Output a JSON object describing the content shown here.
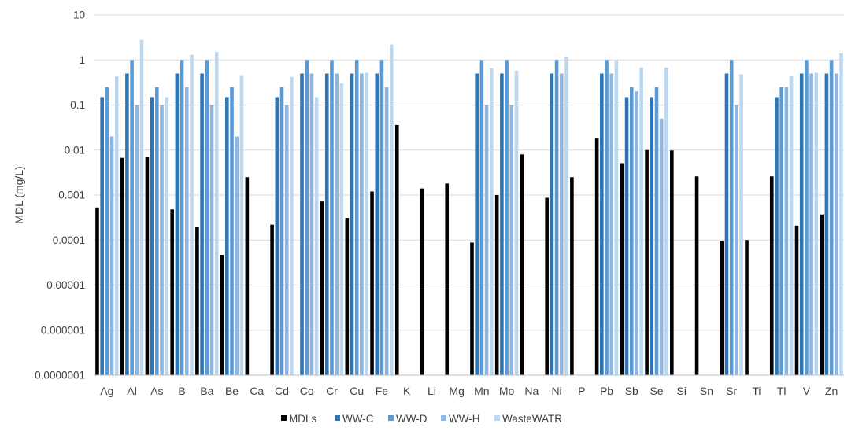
{
  "chart_data": {
    "type": "bar",
    "yscale": "log",
    "ylim": [
      1e-07,
      10
    ],
    "yticks": [
      "10",
      "1",
      "0.1",
      "0.01",
      "0.001",
      "0.0001",
      "0.00001",
      "0.000001",
      "0.0000001"
    ],
    "ylabel": "MDL (mg/L)",
    "xlabel": "",
    "grid": true,
    "legend_position": "bottom",
    "categories": [
      "Ag",
      "Al",
      "As",
      "B",
      "Ba",
      "Be",
      "Ca",
      "Cd",
      "Co",
      "Cr",
      "Cu",
      "Fe",
      "K",
      "Li",
      "Mg",
      "Mn",
      "Mo",
      "Na",
      "Ni",
      "P",
      "Pb",
      "Sb",
      "Se",
      "Si",
      "Sn",
      "Sr",
      "Ti",
      "Tl",
      "V",
      "Zn"
    ],
    "series": [
      {
        "name": "MDLs",
        "color": "#000000",
        "values": [
          0.00053,
          0.0067,
          0.007,
          0.00048,
          0.0002,
          4.7e-05,
          0.0025,
          0.00022,
          null,
          0.00072,
          0.00031,
          0.0012,
          0.036,
          0.0014,
          0.0018,
          8.8e-05,
          0.001,
          0.008,
          0.00087,
          0.0025,
          0.018,
          0.0051,
          0.01,
          0.0098,
          0.0026,
          9.5e-05,
          0.0001,
          0.0026,
          0.00021,
          0.00037
        ]
      },
      {
        "name": "WW-C",
        "color": "#2e75b6",
        "values": [
          0.15,
          0.5,
          0.15,
          0.5,
          0.5,
          0.15,
          null,
          0.15,
          0.5,
          0.5,
          0.5,
          0.5,
          null,
          null,
          null,
          0.5,
          0.5,
          null,
          0.5,
          null,
          0.5,
          0.15,
          0.15,
          null,
          null,
          0.5,
          null,
          0.15,
          0.5,
          0.5
        ]
      },
      {
        "name": "WW-D",
        "color": "#5b9bd5",
        "values": [
          0.25,
          1,
          0.25,
          1,
          1,
          0.25,
          null,
          0.25,
          1,
          1,
          1,
          1,
          null,
          null,
          null,
          1,
          1,
          null,
          1,
          null,
          1,
          0.25,
          0.25,
          null,
          null,
          1,
          null,
          0.25,
          1,
          1
        ]
      },
      {
        "name": "WW-H",
        "color": "#8fb5e1",
        "values": [
          0.02,
          0.1,
          0.1,
          0.25,
          0.1,
          0.02,
          null,
          0.1,
          0.5,
          0.5,
          0.5,
          0.25,
          null,
          null,
          null,
          0.1,
          0.1,
          null,
          0.5,
          null,
          0.5,
          0.2,
          0.05,
          null,
          null,
          0.1,
          null,
          0.25,
          0.5,
          0.5
        ]
      },
      {
        "name": "WasteWATR",
        "color": "#bdd7ee",
        "values": [
          0.43,
          2.8,
          0.15,
          1.3,
          1.5,
          0.46,
          null,
          0.42,
          0.15,
          0.3,
          0.52,
          2.2,
          null,
          null,
          null,
          0.65,
          0.58,
          null,
          1.2,
          null,
          1,
          0.68,
          0.68,
          null,
          null,
          0.48,
          null,
          0.45,
          0.52,
          1.4
        ]
      }
    ]
  }
}
